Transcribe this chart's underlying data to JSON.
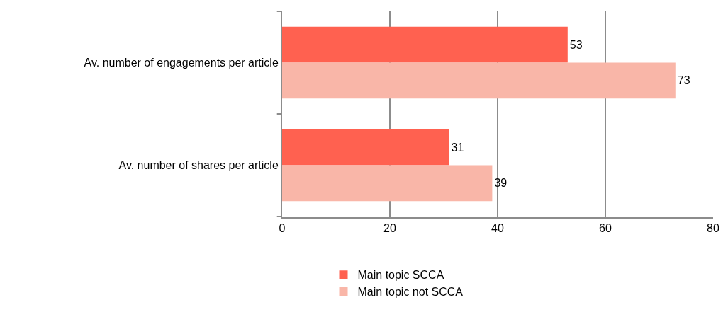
{
  "chart_data": {
    "type": "bar",
    "orientation": "horizontal",
    "categories": [
      "Av. number of engagements per article",
      "Av. number of shares per article"
    ],
    "series": [
      {
        "name": "Main topic SCCA",
        "color": "#ff6150",
        "values": [
          53,
          31
        ]
      },
      {
        "name": "Main topic not SCCA",
        "color": "#f9b6a8",
        "values": [
          73,
          39
        ]
      }
    ],
    "xlim": [
      0,
      80
    ],
    "xticks": [
      0,
      20,
      40,
      60,
      80
    ],
    "grid": "x",
    "legend": "bottom",
    "data_labels": true
  }
}
